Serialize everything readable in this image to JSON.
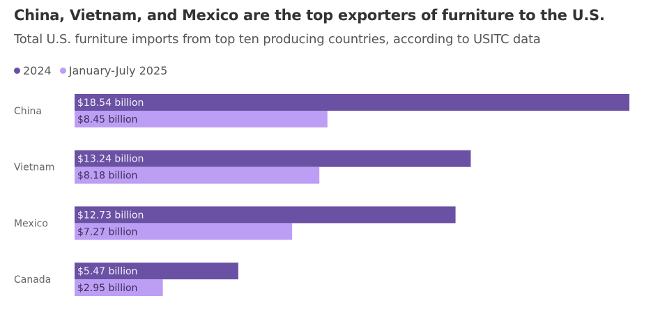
{
  "title": "China, Vietnam, and Mexico are the top exporters of furniture to the U.S.",
  "subtitle": "Total U.S. furniture imports from top ten producing countries, according to USITC data",
  "chart_data": {
    "type": "bar",
    "orientation": "horizontal",
    "title": "China, Vietnam, and Mexico are the top exporters of furniture to the U.S.",
    "subtitle": "Total U.S. furniture imports from top ten producing countries, according to USITC data",
    "categories": [
      "China",
      "Vietnam",
      "Mexico",
      "Canada"
    ],
    "series": [
      {
        "name": "2024",
        "values": [
          18.54,
          13.24,
          12.73,
          5.47
        ],
        "labels": [
          "$18.54 billion",
          "$13.24 billion",
          "$12.73 billion",
          "$5.47 billion"
        ],
        "color": "#6a51a3"
      },
      {
        "name": "January-July 2025",
        "values": [
          8.45,
          8.18,
          7.27,
          2.95
        ],
        "labels": [
          "$8.45 billion",
          "$8.18 billion",
          "$7.27 billion",
          "$2.95 billion"
        ],
        "color": "#bc9ef5"
      }
    ],
    "unit": "billion USD",
    "xlim": [
      0,
      18.54
    ],
    "grid": false,
    "legend": "top-left"
  }
}
